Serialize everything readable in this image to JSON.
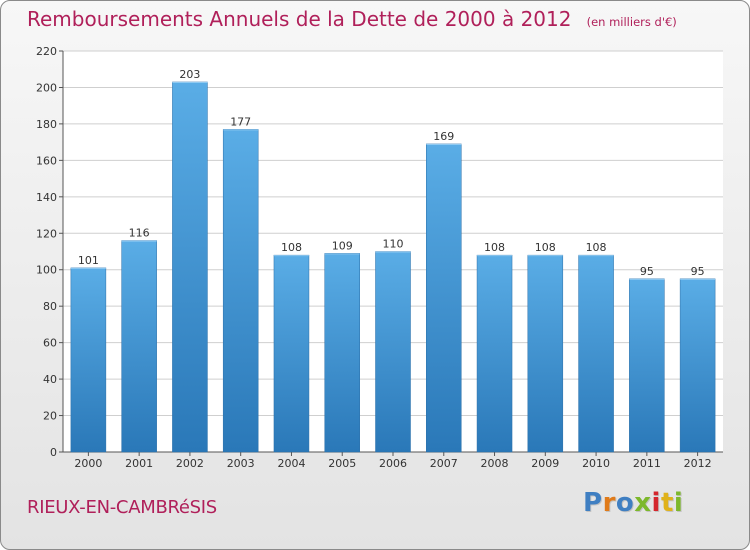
{
  "title": "Remboursements Annuels de la Dette de 2000 à 2012",
  "subtitle": "(en milliers d'€)",
  "commune": "RIEUX-EN-CAMBRéSIS",
  "logo": "Proxiti",
  "colors": {
    "title": "#b0205a",
    "bar_top": "#5aade6",
    "bar_bottom": "#2a78b8",
    "logo_letters": [
      "#3f7fc2",
      "#e07b1a",
      "#3f7fc2",
      "#7db82b",
      "#d4262d",
      "#e0b21a",
      "#7db82b"
    ]
  },
  "chart_data": {
    "type": "bar",
    "categories": [
      "2000",
      "2001",
      "2002",
      "2003",
      "2004",
      "2005",
      "2006",
      "2007",
      "2008",
      "2009",
      "2010",
      "2011",
      "2012"
    ],
    "values": [
      101,
      116,
      203,
      177,
      108,
      109,
      110,
      169,
      108,
      108,
      108,
      95,
      95
    ],
    "ylim": [
      0,
      220
    ],
    "yticks": [
      0,
      20,
      40,
      60,
      80,
      100,
      120,
      140,
      160,
      180,
      200,
      220
    ],
    "grid": true,
    "legend": "none"
  }
}
